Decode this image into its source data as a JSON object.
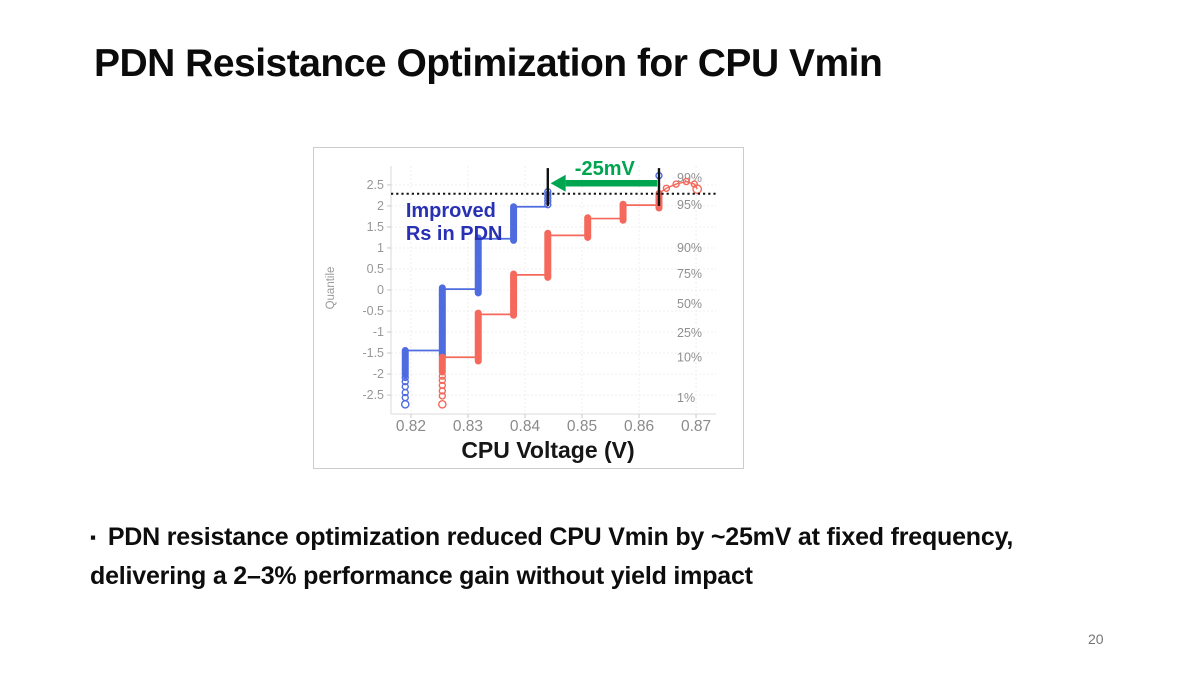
{
  "slide": {
    "title": "PDN Resistance Optimization for CPU Vmin",
    "bullet_char": "▪",
    "bullet_lines": [
      "PDN resistance optimization reduced CPU Vmin by ~25mV at fixed frequency,",
      "delivering a 2–3% performance gain without yield impact"
    ],
    "page_number": "20"
  },
  "chart_data": {
    "type": "line",
    "subtype": "quantile-staircase",
    "title": "",
    "xlabel": "CPU Voltage (V)",
    "ylabel": "Quantile",
    "xlim": [
      0.8165,
      0.8735
    ],
    "ylim": [
      -2.95,
      2.95
    ],
    "grid": true,
    "legend": "none",
    "x_tick_values": [
      0.82,
      0.83,
      0.84,
      0.85,
      0.86,
      0.87
    ],
    "x_tick_labels": [
      "0.82",
      "0.83",
      "0.84",
      "0.85",
      "0.86",
      "0.87"
    ],
    "y_tick_values": [
      2.5,
      2,
      1.5,
      1,
      0.5,
      0,
      -0.5,
      -1,
      -1.5,
      -2,
      -2.5
    ],
    "y_tick_labels": [
      "2.5",
      "2",
      "1.5",
      "1",
      "0.5",
      "0",
      "-0.5",
      "-1",
      "-1.5",
      "-2",
      "-2.5"
    ],
    "right_axis": {
      "labels": [
        "99%",
        "95%",
        "90%",
        "75%",
        "50%",
        "25%",
        "10%",
        "1%"
      ],
      "quantiles": [
        2.66,
        2.02,
        1.0,
        0.38,
        -0.33,
        -1.02,
        -1.6,
        -2.57
      ],
      "color": "#8f8f8f"
    },
    "series": [
      {
        "name": "Improved Rs in PDN",
        "color": "#4f6be0",
        "strips": [
          {
            "x": 0.819,
            "q": [
              -2.02,
              -1.44
            ]
          },
          {
            "x": 0.8255,
            "q": [
              -1.58,
              0.05
            ]
          },
          {
            "x": 0.8318,
            "q": [
              -0.07,
              1.24
            ]
          },
          {
            "x": 0.838,
            "q": [
              1.18,
              1.98
            ]
          }
        ],
        "connectors": [
          {
            "q": -1.44,
            "x": [
              0.819,
              0.8255
            ]
          },
          {
            "q": 0.02,
            "x": [
              0.8255,
              0.8318
            ]
          },
          {
            "q": 1.22,
            "x": [
              0.8318,
              0.838
            ]
          },
          {
            "q": 1.98,
            "x": [
              0.838,
              0.844
            ]
          }
        ],
        "polylines": [],
        "circles": [
          [
            0.819,
            -2.08
          ],
          [
            0.819,
            -2.18
          ],
          [
            0.819,
            -2.3
          ],
          [
            0.819,
            -2.44
          ],
          [
            0.819,
            -2.56
          ],
          [
            0.819,
            -2.72,
            3.6
          ],
          [
            0.844,
            2.03
          ],
          [
            0.844,
            2.11
          ],
          [
            0.844,
            2.19
          ],
          [
            0.844,
            2.27
          ],
          [
            0.844,
            2.34
          ],
          [
            0.8635,
            2.72
          ]
        ]
      },
      {
        "name": "",
        "color": "#f4695c",
        "strips": [
          {
            "x": 0.8255,
            "q": [
              -1.95,
              -1.6
            ]
          },
          {
            "x": 0.8318,
            "q": [
              -1.69,
              -0.55
            ]
          },
          {
            "x": 0.838,
            "q": [
              -0.6,
              0.38
            ]
          },
          {
            "x": 0.844,
            "q": [
              0.3,
              1.35
            ]
          },
          {
            "x": 0.851,
            "q": [
              1.25,
              1.72
            ]
          },
          {
            "x": 0.8572,
            "q": [
              1.66,
              2.04
            ]
          },
          {
            "x": 0.8635,
            "q": [
              1.95,
              2.3
            ]
          }
        ],
        "connectors": [
          {
            "q": -1.6,
            "x": [
              0.8255,
              0.8318
            ]
          },
          {
            "q": -0.58,
            "x": [
              0.8318,
              0.838
            ]
          },
          {
            "q": 0.36,
            "x": [
              0.838,
              0.844
            ]
          },
          {
            "q": 1.3,
            "x": [
              0.844,
              0.851
            ]
          },
          {
            "q": 1.7,
            "x": [
              0.851,
              0.8572
            ]
          },
          {
            "q": 2.02,
            "x": [
              0.8572,
              0.8635
            ]
          }
        ],
        "polylines": [
          [
            [
              0.8635,
              2.3
            ],
            [
              0.8648,
              2.42
            ],
            [
              0.8665,
              2.52
            ],
            [
              0.8683,
              2.58
            ],
            [
              0.8697,
              2.52
            ],
            [
              0.8702,
              2.4
            ]
          ]
        ],
        "circles": [
          [
            0.8255,
            -2.05
          ],
          [
            0.8255,
            -2.15
          ],
          [
            0.8255,
            -2.27
          ],
          [
            0.8255,
            -2.4
          ],
          [
            0.8255,
            -2.52
          ],
          [
            0.8255,
            -2.72,
            3.6
          ],
          [
            0.8648,
            2.42
          ],
          [
            0.8665,
            2.52
          ],
          [
            0.8683,
            2.58
          ],
          [
            0.8697,
            2.52
          ],
          [
            0.8702,
            2.4,
            4.2
          ]
        ]
      }
    ],
    "annotations": {
      "arrow_label": "-25mV",
      "arrow_color": "#00a550",
      "arrow": {
        "q": 2.54,
        "x_from": 0.8632,
        "x_to": 0.8445
      },
      "arrow_label_pos": {
        "x": 0.854,
        "q": 2.86
      },
      "dotted_line_q": 2.29,
      "dotted_line_color": "#111111",
      "ref_bars_x": [
        0.844,
        0.8635
      ],
      "ref_bars_q": [
        2.0,
        2.9
      ],
      "ref_bar_color": "#111111",
      "series_label": {
        "lines": [
          "Improved",
          "Rs in PDN"
        ],
        "color": "#2830b4",
        "x": 0.8191,
        "q_lines": [
          1.74,
          1.19
        ]
      }
    }
  }
}
